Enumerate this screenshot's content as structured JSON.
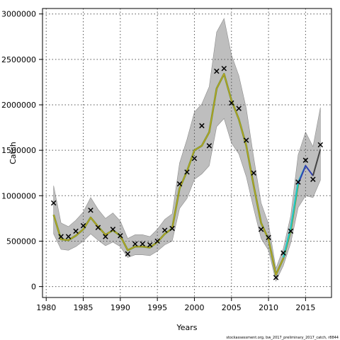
{
  "chart_data": {
    "type": "line",
    "xlabel": "Years",
    "ylabel": "Catch",
    "xlim": [
      1979.5,
      2018.5
    ],
    "ylim": [
      -120000,
      3060000
    ],
    "x_ticks": [
      1980,
      1985,
      1990,
      1995,
      2000,
      2005,
      2010,
      2015
    ],
    "y_ticks": [
      0,
      500000,
      1000000,
      1500000,
      2000000,
      2500000,
      3000000
    ],
    "grid": true,
    "footnote": "stockassessment.org, bw_2017_preliminary_2017_catch, r8844",
    "colors": {
      "band": "#bebebe",
      "band_edge": "#8c8c8c",
      "main_line": "#6b9b2a",
      "main_line_inner": "#e0a020",
      "peel_line": "#1fc8c8",
      "peel_line_2": "#2f3fb0",
      "recent_line": "#444444",
      "grid": "#555555"
    },
    "observed": {
      "x": [
        1981,
        1982,
        1983,
        1984,
        1985,
        1986,
        1987,
        1988,
        1989,
        1990,
        1991,
        1992,
        1993,
        1994,
        1995,
        1996,
        1997,
        1998,
        1999,
        2000,
        2001,
        2002,
        2003,
        2004,
        2005,
        2006,
        2007,
        2008,
        2009,
        2010,
        2011,
        2012,
        2013,
        2014,
        2015,
        2016,
        2017
      ],
      "y": [
        920000,
        550000,
        550000,
        610000,
        670000,
        840000,
        650000,
        550000,
        630000,
        560000,
        360000,
        470000,
        470000,
        460000,
        500000,
        620000,
        640000,
        1130000,
        1260000,
        1410000,
        1770000,
        1550000,
        2370000,
        2400000,
        2020000,
        1960000,
        1610000,
        1250000,
        630000,
        540000,
        100000,
        370000,
        610000,
        1150000,
        1390000,
        1180000,
        1560000
      ]
    },
    "series": [
      {
        "x": [
          1981,
          1982,
          1983,
          1984,
          1985,
          1986,
          1987,
          1988,
          1989,
          1990,
          1991,
          1992,
          1993,
          1994,
          1995,
          1996,
          1997,
          1998,
          1999,
          2000,
          2001,
          2002,
          2003,
          2004,
          2005,
          2006,
          2007,
          2008,
          2009,
          2010,
          2011,
          2012,
          2013,
          2014
        ],
        "y": [
          790000,
          520000,
          510000,
          560000,
          630000,
          760000,
          660000,
          570000,
          620000,
          560000,
          400000,
          440000,
          440000,
          430000,
          490000,
          580000,
          640000,
          1080000,
          1270000,
          1500000,
          1550000,
          1700000,
          2180000,
          2340000,
          2050000,
          1840000,
          1550000,
          1110000,
          700000,
          520000,
          130000,
          310000,
          620000,
          1130000
        ]
      },
      {
        "x": [
          2012,
          2013,
          2014,
          2015
        ],
        "y": [
          320000,
          650000,
          1150000,
          1330000
        ]
      },
      {
        "x": [
          2014,
          2015,
          2016
        ],
        "y": [
          1130000,
          1330000,
          1220000
        ]
      },
      {
        "x": [
          2016,
          2017
        ],
        "y": [
          1220000,
          1510000
        ]
      }
    ],
    "confidence_band": {
      "x": [
        1981,
        1982,
        1983,
        1984,
        1985,
        1986,
        1987,
        1988,
        1989,
        1990,
        1991,
        1992,
        1993,
        1994,
        1995,
        1996,
        1997,
        1998,
        1999,
        2000,
        2001,
        2002,
        2003,
        2004,
        2005,
        2006,
        2007,
        2008,
        2009,
        2010,
        2011,
        2012,
        2013,
        2014,
        2015,
        2016,
        2017
      ],
      "lower": [
        580000,
        410000,
        400000,
        440000,
        500000,
        580000,
        510000,
        450000,
        490000,
        440000,
        320000,
        350000,
        350000,
        340000,
        390000,
        460000,
        500000,
        860000,
        970000,
        1180000,
        1240000,
        1330000,
        1760000,
        1850000,
        1580000,
        1460000,
        1210000,
        860000,
        530000,
        400000,
        60000,
        230000,
        480000,
        870000,
        1000000,
        980000,
        1170000
      ],
      "upper": [
        1110000,
        700000,
        660000,
        730000,
        820000,
        980000,
        850000,
        750000,
        810000,
        720000,
        530000,
        570000,
        570000,
        550000,
        630000,
        740000,
        800000,
        1360000,
        1620000,
        1920000,
        2010000,
        2200000,
        2800000,
        2950000,
        2550000,
        2320000,
        1960000,
        1420000,
        920000,
        690000,
        200000,
        420000,
        780000,
        1450000,
        1700000,
        1540000,
        1970000
      ]
    }
  }
}
